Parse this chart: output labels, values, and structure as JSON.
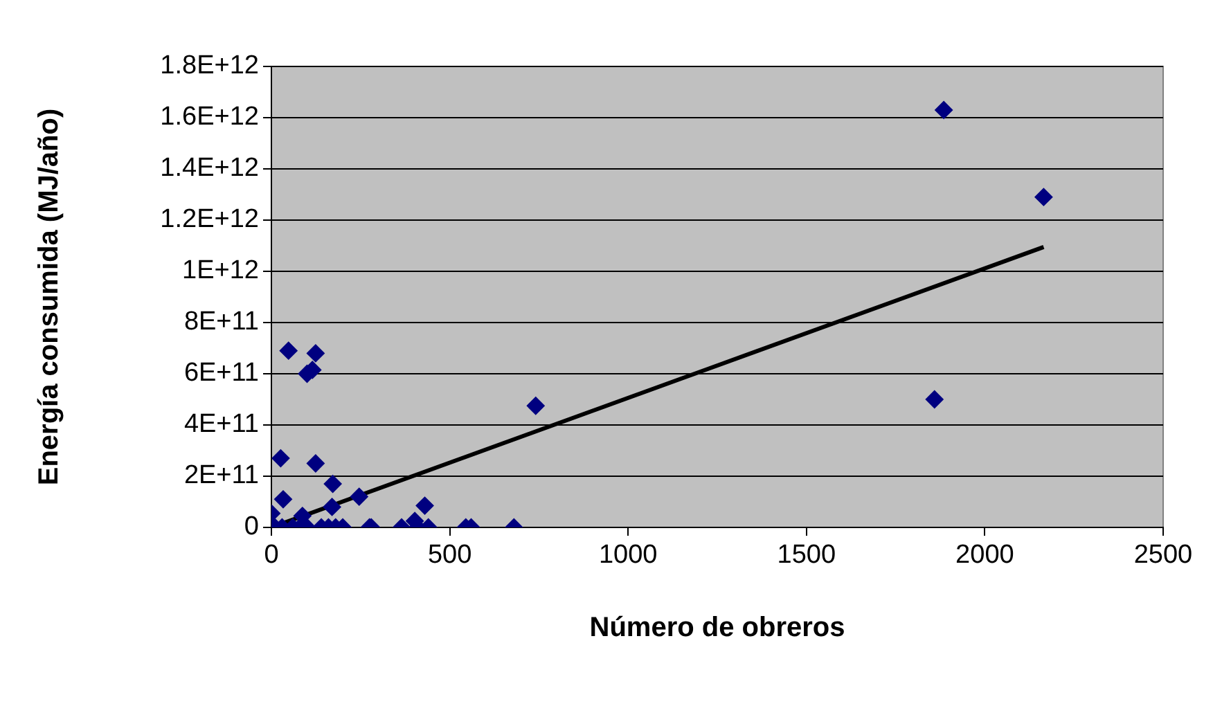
{
  "chart_data": {
    "type": "scatter",
    "xlabel": "Número de obreros",
    "ylabel": "Energía consumida (MJ/año)",
    "xlim": [
      0,
      2500
    ],
    "xticks": [
      0,
      500,
      1000,
      1500,
      2000,
      2500
    ],
    "ylim": [
      0,
      1800000000000.0
    ],
    "yticks": [
      0,
      {
        "value": 200000000000.0,
        "label": "2E+11"
      },
      {
        "value": 400000000000.0,
        "label": "4E+11"
      },
      {
        "value": 600000000000.0,
        "label": "6E+11"
      },
      {
        "value": 800000000000.0,
        "label": "8E+11"
      },
      {
        "value": 1000000000000.0,
        "label": "1E+12"
      },
      {
        "value": 1200000000000.0,
        "label": "1.2E+12"
      },
      {
        "value": 1400000000000.0,
        "label": "1.4E+12"
      },
      {
        "value": 1600000000000.0,
        "label": "1.6E+12"
      },
      {
        "value": 1800000000000.0,
        "label": "1.8E+12"
      }
    ],
    "grid": "y",
    "legend": false,
    "marker": "diamond",
    "series": [
      {
        "color": "#000080",
        "x": [
          1885,
          2165,
          1859,
          741,
          48,
          124,
          100,
          115,
          26,
          124,
          172,
          33,
          246,
          430,
          170,
          0,
          87,
          402,
          10,
          30,
          60,
          80,
          100,
          140,
          160,
          180,
          200,
          275,
          280,
          365,
          410,
          440,
          545,
          560,
          680
        ],
        "values": [
          1630000000000.0,
          1290000000000.0,
          500000000000.0,
          475000000000.0,
          690000000000.0,
          680000000000.0,
          600000000000.0,
          615000000000.0,
          270000000000.0,
          250000000000.0,
          170000000000.0,
          110000000000.0,
          120000000000.0,
          85000000000.0,
          80000000000.0,
          55000000000.0,
          45000000000.0,
          25000000000.0,
          0,
          0,
          0,
          0,
          0,
          0,
          0,
          0,
          0,
          0,
          0,
          0,
          0,
          0,
          0,
          0,
          0
        ]
      },
      {
        "type": "line",
        "color": "#000000",
        "marker": "none",
        "line_style": "solid",
        "x": [
          0,
          2165
        ],
        "values": [
          0,
          1095000000000.0
        ]
      }
    ]
  }
}
